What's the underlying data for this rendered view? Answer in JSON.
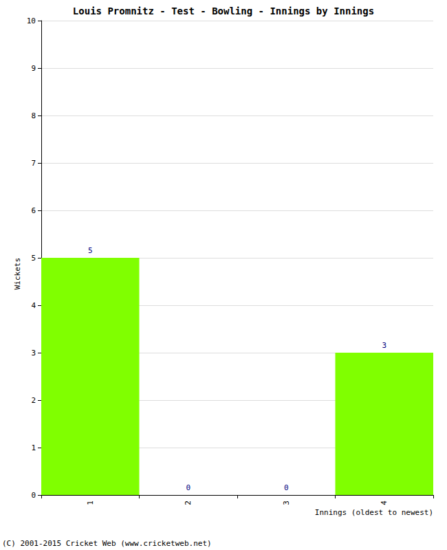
{
  "chart_data": {
    "type": "bar",
    "title": "Louis Promnitz - Test - Bowling - Innings by Innings",
    "x_label": "Innings (oldest to newest)",
    "y_label": "Wickets",
    "categories": [
      "1",
      "2",
      "3",
      "4"
    ],
    "values": [
      5,
      0,
      0,
      3
    ],
    "color": "#80ff00",
    "ylim": [
      0,
      10
    ],
    "yticks": [
      0,
      1,
      2,
      3,
      4,
      5,
      6,
      7,
      8,
      9,
      10
    ],
    "grid": true,
    "data_labels": true,
    "annotations": [
      "(C) 2001-2015 Cricket Web (www.cricketweb.net)"
    ]
  }
}
